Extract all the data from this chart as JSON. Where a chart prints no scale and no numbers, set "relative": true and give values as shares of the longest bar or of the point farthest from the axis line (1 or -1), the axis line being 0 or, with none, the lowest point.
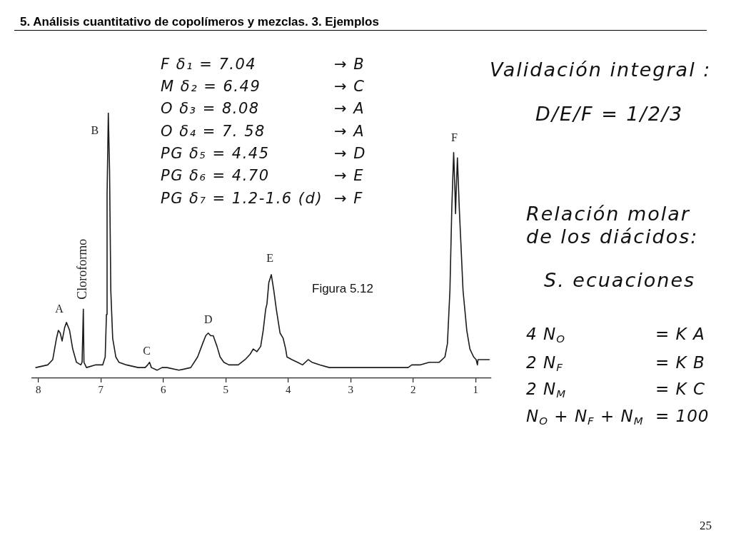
{
  "chart_data": {
    "type": "line",
    "title": "5. Análisis cuantitativo de copolímeros y mezclas. 3. Ejemplos",
    "x": [
      8.04,
      7.85,
      7.77,
      7.71,
      7.68,
      7.65,
      7.62,
      7.58,
      7.55,
      7.5,
      7.45,
      7.39,
      7.32,
      7.3,
      7.28,
      7.27,
      7.23,
      7.09,
      6.97,
      6.93,
      6.91,
      6.9,
      6.88,
      6.86,
      6.84,
      6.81,
      6.76,
      6.71,
      6.59,
      6.4,
      6.29,
      6.25,
      6.22,
      6.19,
      6.1,
      6.02,
      5.94,
      5.75,
      5.56,
      5.45,
      5.37,
      5.32,
      5.28,
      5.24,
      5.2,
      5.14,
      5.09,
      5.03,
      4.95,
      4.8,
      4.69,
      4.61,
      4.56,
      4.5,
      4.44,
      4.4,
      4.36,
      4.34,
      4.31,
      4.27,
      4.23,
      4.19,
      4.13,
      4.08,
      4.04,
      4.02,
      3.94,
      3.85,
      3.77,
      3.68,
      3.62,
      3.49,
      3.34,
      3.11,
      2.88,
      2.69,
      2.5,
      2.27,
      2.08,
      2.02,
      1.89,
      1.74,
      1.58,
      1.49,
      1.45,
      1.41,
      1.38,
      1.35,
      1.33,
      1.32,
      1.31,
      1.29,
      1.26,
      1.2,
      1.14,
      1.09,
      1.03,
      0.99,
      0.97,
      0.96,
      0.86,
      0.78
    ],
    "series": [
      {
        "color": "#1c1c1c",
        "values": [
          0.04,
          0.05,
          0.07,
          0.15,
          0.18,
          0.17,
          0.14,
          0.19,
          0.21,
          0.18,
          0.11,
          0.06,
          0.05,
          0.06,
          0.26,
          0.06,
          0.04,
          0.05,
          0.05,
          0.08,
          0.24,
          0.69,
          1.0,
          0.78,
          0.33,
          0.15,
          0.08,
          0.06,
          0.05,
          0.04,
          0.04,
          0.05,
          0.06,
          0.04,
          0.03,
          0.04,
          0.04,
          0.03,
          0.04,
          0.08,
          0.13,
          0.16,
          0.17,
          0.16,
          0.16,
          0.12,
          0.08,
          0.06,
          0.05,
          0.05,
          0.07,
          0.09,
          0.11,
          0.1,
          0.12,
          0.18,
          0.26,
          0.28,
          0.36,
          0.39,
          0.33,
          0.26,
          0.17,
          0.15,
          0.11,
          0.08,
          0.07,
          0.06,
          0.05,
          0.07,
          0.06,
          0.05,
          0.04,
          0.04,
          0.04,
          0.04,
          0.04,
          0.04,
          0.04,
          0.05,
          0.05,
          0.06,
          0.06,
          0.08,
          0.13,
          0.33,
          0.64,
          0.85,
          0.71,
          0.62,
          0.7,
          0.83,
          0.64,
          0.33,
          0.18,
          0.11,
          0.08,
          0.07,
          0.05,
          0.07,
          0.07,
          0.07
        ]
      }
    ],
    "relative": true,
    "xlim": [
      8.1,
      0.75
    ],
    "xticks": [
      8,
      7,
      6,
      5,
      4,
      3,
      2,
      1
    ],
    "marker": "none",
    "annotations": [
      "F δ₁ = 7.04\t→ B",
      "M δ₂ = 6.49\t→ C",
      "O δ₃ = 8.08\t→ A",
      "O δ₄ = 7. 58\t→ A",
      "PG δ₅ = 4.45\t→ D",
      "PG δ₆ = 4.70\t→ E",
      "PG δ₇ = 1.2-1.6 (d)\t→ F",
      "Figura 5.12",
      "Validación integral :",
      "D/E/F = 1/2/3",
      "Relación molar\nde los diácidos:",
      "S. ecuaciones",
      "4 N$_{O}$\t= K A",
      "2 N$_{F}$\t= K B",
      "2 N$_{M}$\t= K C",
      "N$_{O}$ + N$_{F}$ + N$_{M}$\t= 100",
      "25",
      {
        "text": "A",
        "x": 7.55,
        "y": 0.21
      },
      {
        "text": "Cloroformo",
        "x": 7.28,
        "y": 0.26
      },
      {
        "text": "B",
        "x": 6.88,
        "y": 1.0
      },
      {
        "text": "C",
        "x": 6.22,
        "y": 0.06
      },
      {
        "text": "D",
        "x": 5.28,
        "y": 0.17
      },
      {
        "text": "E",
        "x": 4.27,
        "y": 0.39
      },
      {
        "text": "F",
        "x": 1.35,
        "y": 0.85
      }
    ]
  }
}
